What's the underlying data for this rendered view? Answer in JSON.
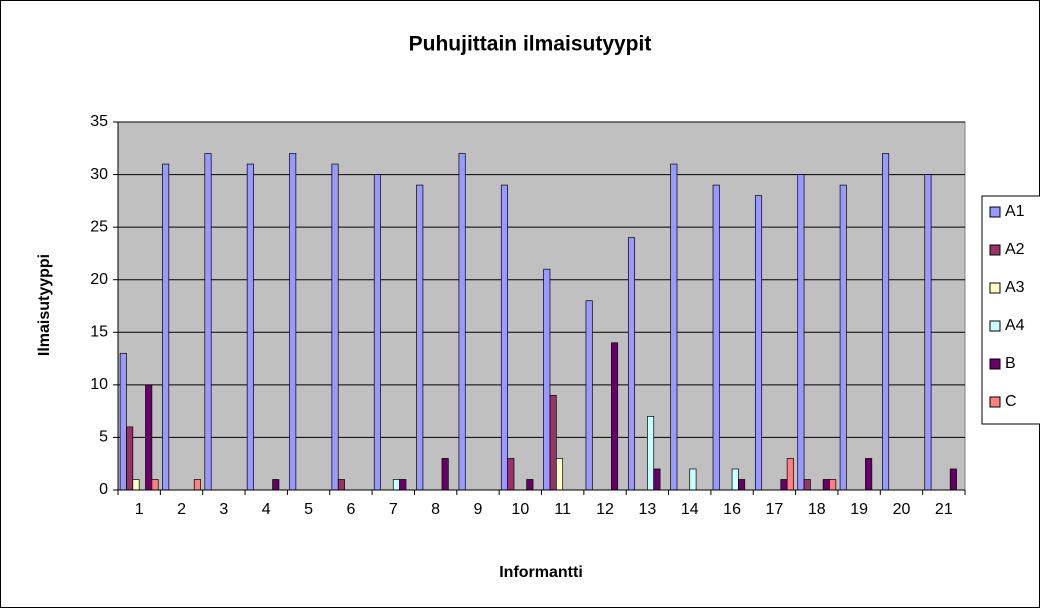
{
  "chart_data": {
    "type": "bar",
    "title": "Puhujittain ilmaisutyypit",
    "x_label": "Informantti",
    "y_label": "Ilmaisutyyppi",
    "categories": [
      "1",
      "2",
      "3",
      "4",
      "5",
      "6",
      "7",
      "8",
      "9",
      "10",
      "11",
      "12",
      "13",
      "14",
      "16",
      "17",
      "18",
      "19",
      "20",
      "21"
    ],
    "series": [
      {
        "name": "A1",
        "color": "#9999ff",
        "values": [
          13,
          31,
          32,
          31,
          32,
          31,
          30,
          29,
          32,
          29,
          21,
          18,
          24,
          31,
          29,
          28,
          30,
          29,
          32,
          30
        ]
      },
      {
        "name": "A2",
        "color": "#993366",
        "values": [
          6,
          0,
          0,
          0,
          0,
          1,
          0,
          0,
          0,
          3,
          9,
          0,
          0,
          0,
          0,
          0,
          1,
          0,
          0,
          0
        ]
      },
      {
        "name": "A3",
        "color": "#ffffcc",
        "values": [
          1,
          0,
          0,
          0,
          0,
          0,
          0,
          0,
          0,
          0,
          3,
          0,
          0,
          0,
          0,
          0,
          0,
          0,
          0,
          0
        ]
      },
      {
        "name": "A4",
        "color": "#ccffff",
        "values": [
          0,
          0,
          0,
          0,
          0,
          0,
          1,
          0,
          0,
          0,
          0,
          0,
          7,
          2,
          2,
          0,
          0,
          0,
          0,
          0
        ]
      },
      {
        "name": "B",
        "color": "#660066",
        "values": [
          10,
          0,
          0,
          1,
          0,
          0,
          1,
          3,
          0,
          1,
          0,
          14,
          2,
          0,
          1,
          1,
          1,
          3,
          0,
          2
        ]
      },
      {
        "name": "C",
        "color": "#ff8080",
        "values": [
          1,
          1,
          0,
          0,
          0,
          0,
          0,
          0,
          0,
          0,
          0,
          0,
          0,
          0,
          0,
          3,
          1,
          0,
          0,
          0
        ]
      }
    ],
    "ylim": [
      0,
      35
    ],
    "yticks": [
      0,
      5,
      10,
      15,
      20,
      25,
      30,
      35
    ],
    "grid": true,
    "legend": "right"
  }
}
